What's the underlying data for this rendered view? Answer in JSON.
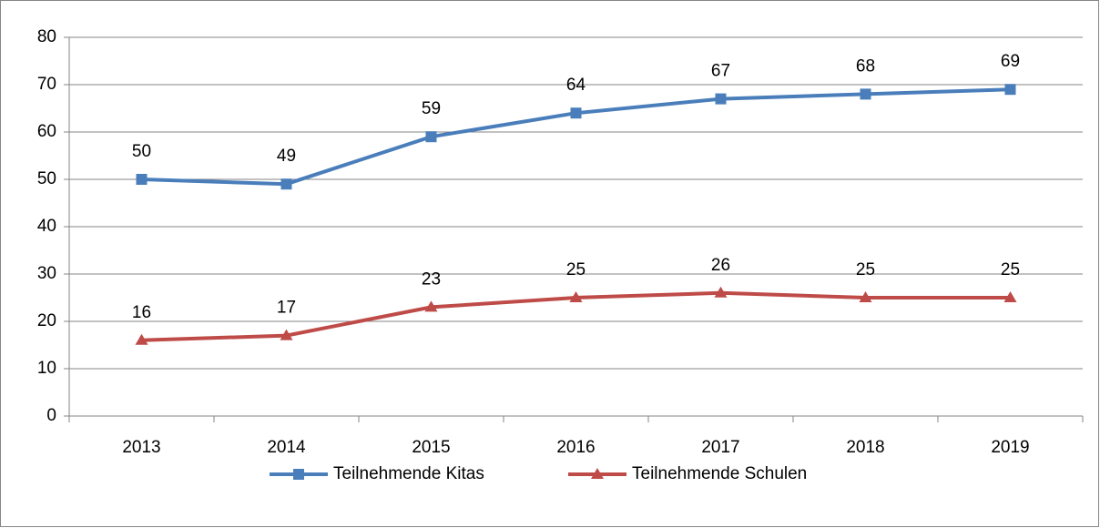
{
  "chart_data": {
    "type": "line",
    "categories": [
      "2013",
      "2014",
      "2015",
      "2016",
      "2017",
      "2018",
      "2019"
    ],
    "series": [
      {
        "name": "Teilnehmende Kitas",
        "color": "#4a7ebb",
        "marker": "square",
        "values": [
          50,
          49,
          59,
          64,
          67,
          68,
          69
        ]
      },
      {
        "name": "Teilnehmende Schulen",
        "color": "#be4b48",
        "marker": "triangle",
        "values": [
          16,
          17,
          23,
          25,
          26,
          25,
          25
        ]
      }
    ],
    "ylim": [
      0,
      80
    ],
    "yticks": [
      0,
      10,
      20,
      30,
      40,
      50,
      60,
      70,
      80
    ],
    "grid": true,
    "data_labels": true,
    "legend": "bottom"
  }
}
